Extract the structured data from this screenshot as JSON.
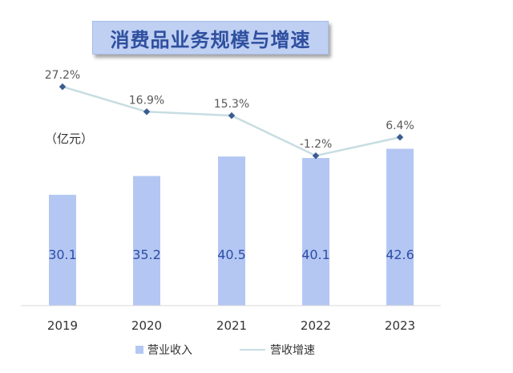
{
  "chart_data": {
    "type": "bar",
    "title": "消费品业务规模与增速",
    "unit_label": "（亿元）",
    "categories": [
      "2019",
      "2020",
      "2021",
      "2022",
      "2023"
    ],
    "series": [
      {
        "name": "营业收入",
        "type": "bar",
        "values": [
          30.1,
          35.2,
          40.5,
          40.1,
          42.6
        ],
        "labels": [
          "30.1",
          "35.2",
          "40.5",
          "40.1",
          "42.6"
        ],
        "color": "#b4c7f3",
        "label_color": "#2d4ea6"
      },
      {
        "name": "营收增速",
        "type": "line",
        "values": [
          27.2,
          16.9,
          15.3,
          -1.2,
          6.4
        ],
        "labels": [
          "27.2%",
          "16.9%",
          "15.3%",
          "-1.2%",
          "6.4%"
        ],
        "color": "#c7dde2",
        "marker_color": "#3b5c8f"
      }
    ],
    "grid": false,
    "legend_position": "bottom"
  }
}
